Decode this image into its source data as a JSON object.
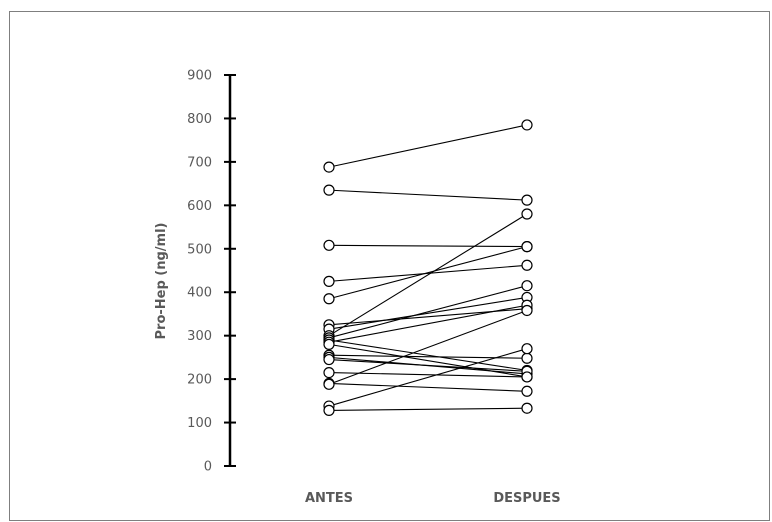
{
  "chart_data": {
    "type": "line",
    "title": "",
    "xlabel": "",
    "ylabel": "Pro-Hep (ng/ml)",
    "categories": [
      "ANTES",
      "DESPUES"
    ],
    "ylim": [
      0,
      900
    ],
    "yticks": [
      0,
      100,
      200,
      300,
      400,
      500,
      600,
      700,
      800,
      900
    ],
    "grid": false,
    "legend": "none",
    "marker": "open-circle",
    "line_color": "#000000",
    "pairs": [
      [
        688,
        785
      ],
      [
        635,
        612
      ],
      [
        508,
        505
      ],
      [
        425,
        462
      ],
      [
        385,
        505
      ],
      [
        325,
        362
      ],
      [
        315,
        388
      ],
      [
        300,
        580
      ],
      [
        295,
        415
      ],
      [
        290,
        220
      ],
      [
        285,
        370
      ],
      [
        280,
        205
      ],
      [
        255,
        248
      ],
      [
        250,
        212
      ],
      [
        245,
        218
      ],
      [
        215,
        205
      ],
      [
        190,
        172
      ],
      [
        188,
        358
      ],
      [
        138,
        270
      ],
      [
        128,
        133
      ]
    ]
  }
}
